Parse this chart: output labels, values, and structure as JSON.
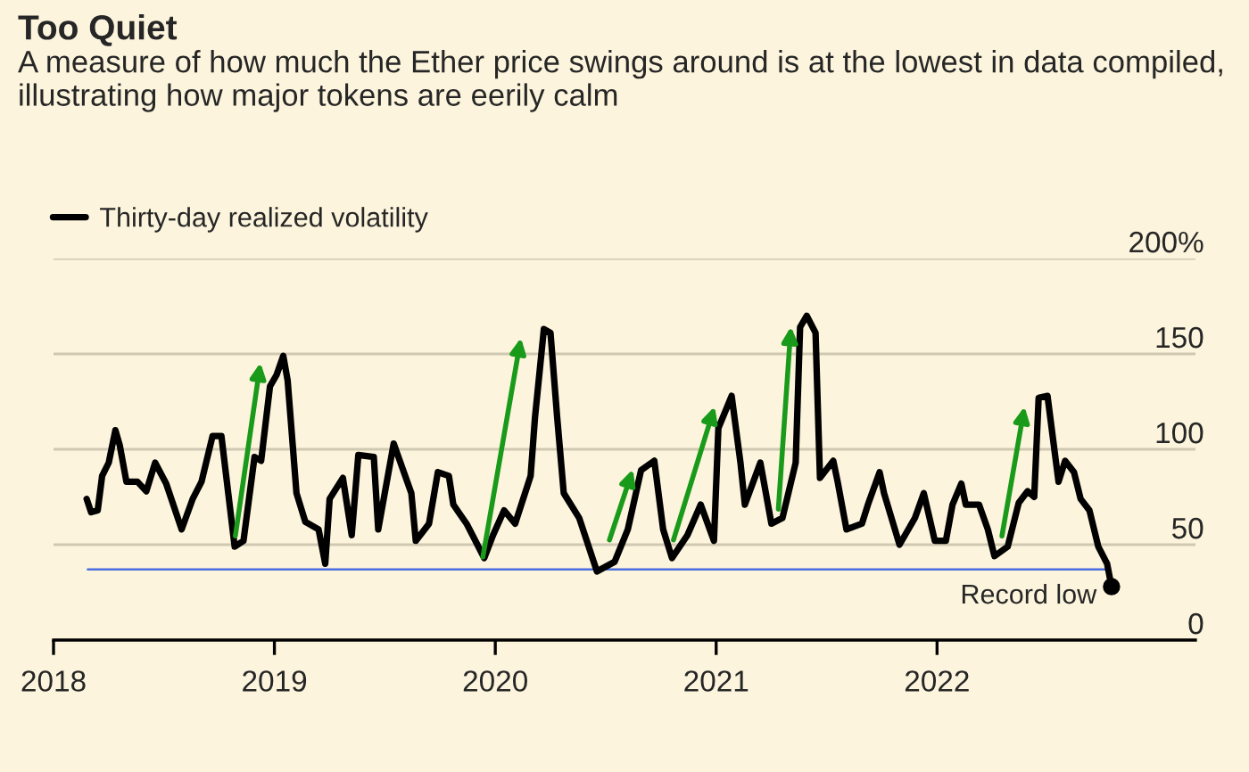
{
  "chart_data": {
    "type": "line",
    "title": "Too Quiet",
    "subtitle": "A measure of how much the Ether price swings around is at the lowest in data compiled, illustrating how major tokens are eerily calm",
    "series": [
      {
        "name": "Thirty-day realized volatility",
        "color": "#000000",
        "x": [
          2018.15,
          2018.17,
          2018.2,
          2018.22,
          2018.25,
          2018.28,
          2018.3,
          2018.33,
          2018.38,
          2018.42,
          2018.46,
          2018.51,
          2018.58,
          2018.63,
          2018.67,
          2018.72,
          2018.76,
          2018.82,
          2018.86,
          2018.91,
          2018.94,
          2018.98,
          2019.01,
          2019.04,
          2019.06,
          2019.1,
          2019.14,
          2019.2,
          2019.23,
          2019.25,
          2019.31,
          2019.35,
          2019.38,
          2019.45,
          2019.47,
          2019.54,
          2019.62,
          2019.64,
          2019.7,
          2019.74,
          2019.79,
          2019.81,
          2019.87,
          2019.95,
          2019.99,
          2020.04,
          2020.09,
          2020.16,
          2020.18,
          2020.22,
          2020.25,
          2020.28,
          2020.31,
          2020.38,
          2020.46,
          2020.54,
          2020.6,
          2020.66,
          2020.72,
          2020.76,
          2020.8,
          2020.87,
          2020.93,
          2020.99,
          2021.01,
          2021.07,
          2021.11,
          2021.13,
          2021.2,
          2021.25,
          2021.3,
          2021.36,
          2021.38,
          2021.41,
          2021.45,
          2021.47,
          2021.53,
          2021.55,
          2021.59,
          2021.66,
          2021.69,
          2021.74,
          2021.76,
          2021.83,
          2021.9,
          2021.94,
          2021.99,
          2022.04,
          2022.07,
          2022.11,
          2022.13,
          2022.19,
          2022.23,
          2022.26,
          2022.32,
          2022.37,
          2022.41,
          2022.44,
          2022.46,
          2022.5,
          2022.55,
          2022.58,
          2022.62,
          2022.65,
          2022.69,
          2022.73,
          2022.77,
          2022.79
        ],
        "values": [
          74,
          67,
          68,
          86,
          93,
          110,
          102,
          83,
          83,
          78,
          93,
          82,
          58,
          74,
          83,
          107,
          107,
          49,
          52,
          96,
          94,
          133,
          139,
          149,
          136,
          77,
          62,
          58,
          40,
          74,
          85,
          55,
          97,
          96,
          58,
          103,
          77,
          52,
          61,
          88,
          86,
          71,
          61,
          43,
          55,
          68,
          61,
          86,
          117,
          163,
          161,
          117,
          77,
          64,
          36,
          41,
          58,
          89,
          94,
          58,
          43,
          55,
          71,
          52,
          111,
          128,
          93,
          71,
          93,
          61,
          64,
          93,
          164,
          170,
          161,
          85,
          94,
          83,
          58,
          61,
          72,
          88,
          77,
          50,
          64,
          77,
          52,
          52,
          71,
          82,
          71,
          71,
          58,
          44,
          49,
          72,
          78,
          75,
          127,
          128,
          83,
          94,
          88,
          74,
          68,
          49,
          40,
          28
        ]
      }
    ],
    "xlim": [
      2018.0,
      2023.17
    ],
    "xticks": [
      2018,
      2019,
      2020,
      2021,
      2022
    ],
    "ylim": [
      0,
      200
    ],
    "yticks": [
      0,
      50,
      100,
      150,
      {
        "value": 200,
        "label": "200%"
      }
    ],
    "grid": "y",
    "legend": "top left",
    "ref_lines": [
      {
        "axis": "y",
        "value": 37,
        "color": "#4a6ee0"
      }
    ],
    "annotations": [
      {
        "text": "Record low",
        "x": 2022.79,
        "y": 28
      }
    ]
  }
}
